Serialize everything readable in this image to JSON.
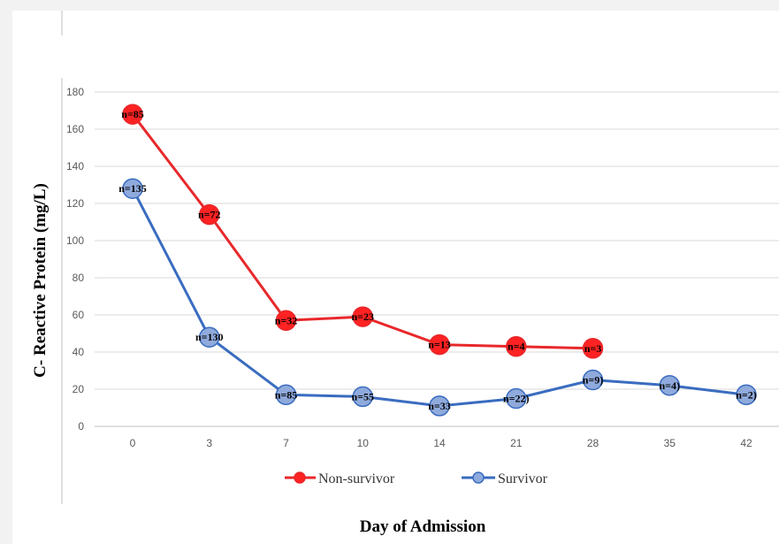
{
  "chart_data": {
    "type": "line",
    "title": "",
    "xlabel": "Day of Admission",
    "ylabel": "C- Reactive Protein (mg/L)",
    "ylim": [
      0,
      180
    ],
    "yticks": [
      0,
      20,
      40,
      60,
      80,
      100,
      120,
      140,
      160,
      180
    ],
    "categories": [
      "0",
      "3",
      "7",
      "10",
      "14",
      "21",
      "28",
      "35",
      "42"
    ],
    "grid": true,
    "legend_position": "bottom",
    "series": [
      {
        "name": "Non-survivor",
        "color": "#e8282b",
        "marker_color": "#ff2222",
        "values": [
          168,
          114,
          57,
          59,
          44,
          43,
          42,
          null,
          null
        ],
        "labels": [
          "n=85",
          "n=72",
          "n=32",
          "n=23",
          "n=13",
          "n=4",
          "n=3",
          "",
          ""
        ]
      },
      {
        "name": "Survivor",
        "color": "#3a6cc0",
        "marker_color": "#8faadc",
        "values": [
          128,
          48,
          17,
          16,
          11,
          15,
          25,
          22,
          17
        ],
        "labels": [
          "n=135",
          "n=130",
          "n=85",
          "n=55",
          "n=33",
          "n=22)",
          "n=9)",
          "n=4)",
          "n=2)"
        ]
      }
    ]
  }
}
